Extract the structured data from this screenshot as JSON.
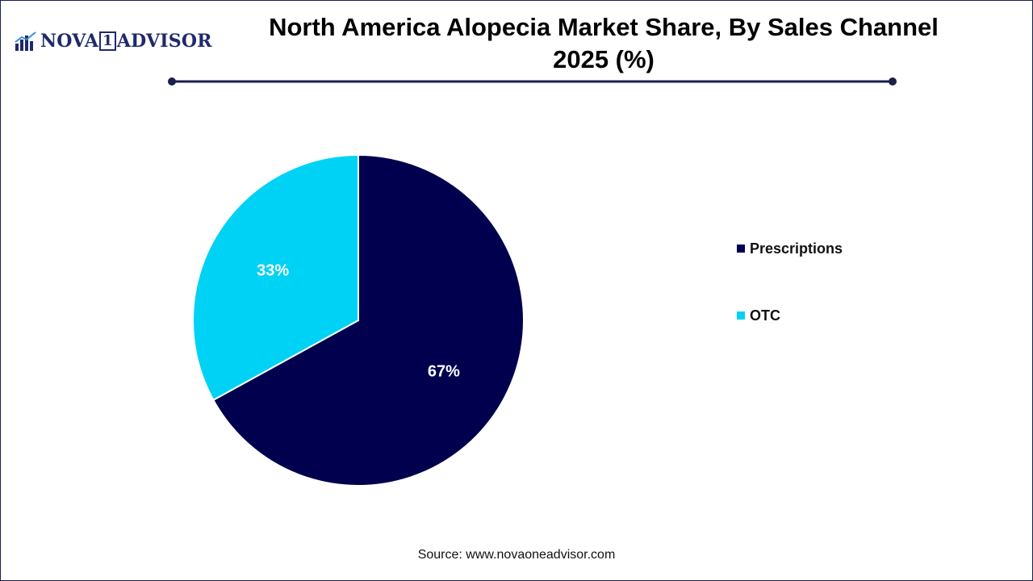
{
  "logo": {
    "name_left": "NOVA",
    "name_digit": "1",
    "name_right": "ADVISOR",
    "icon": "bar-chart-logo-icon"
  },
  "title_line1": "North America Alopecia Market Share, By Sales Channel",
  "title_line2": "2025 (%)",
  "colors": {
    "accent": "#1a1f4d",
    "prescriptions": "#00004f",
    "otc": "#00d2f5"
  },
  "chart_data": {
    "type": "pie",
    "title": "North America Alopecia Market Share, By Sales Channel 2025 (%)",
    "unit": "%",
    "legend_position": "right",
    "slices": [
      {
        "label": "Prescriptions",
        "value": 67,
        "value_label": "67%",
        "color": "#00004f"
      },
      {
        "label": "OTC",
        "value": 33,
        "value_label": "33%",
        "color": "#00d2f5"
      }
    ]
  },
  "source": "Source: www.novaoneadvisor.com"
}
